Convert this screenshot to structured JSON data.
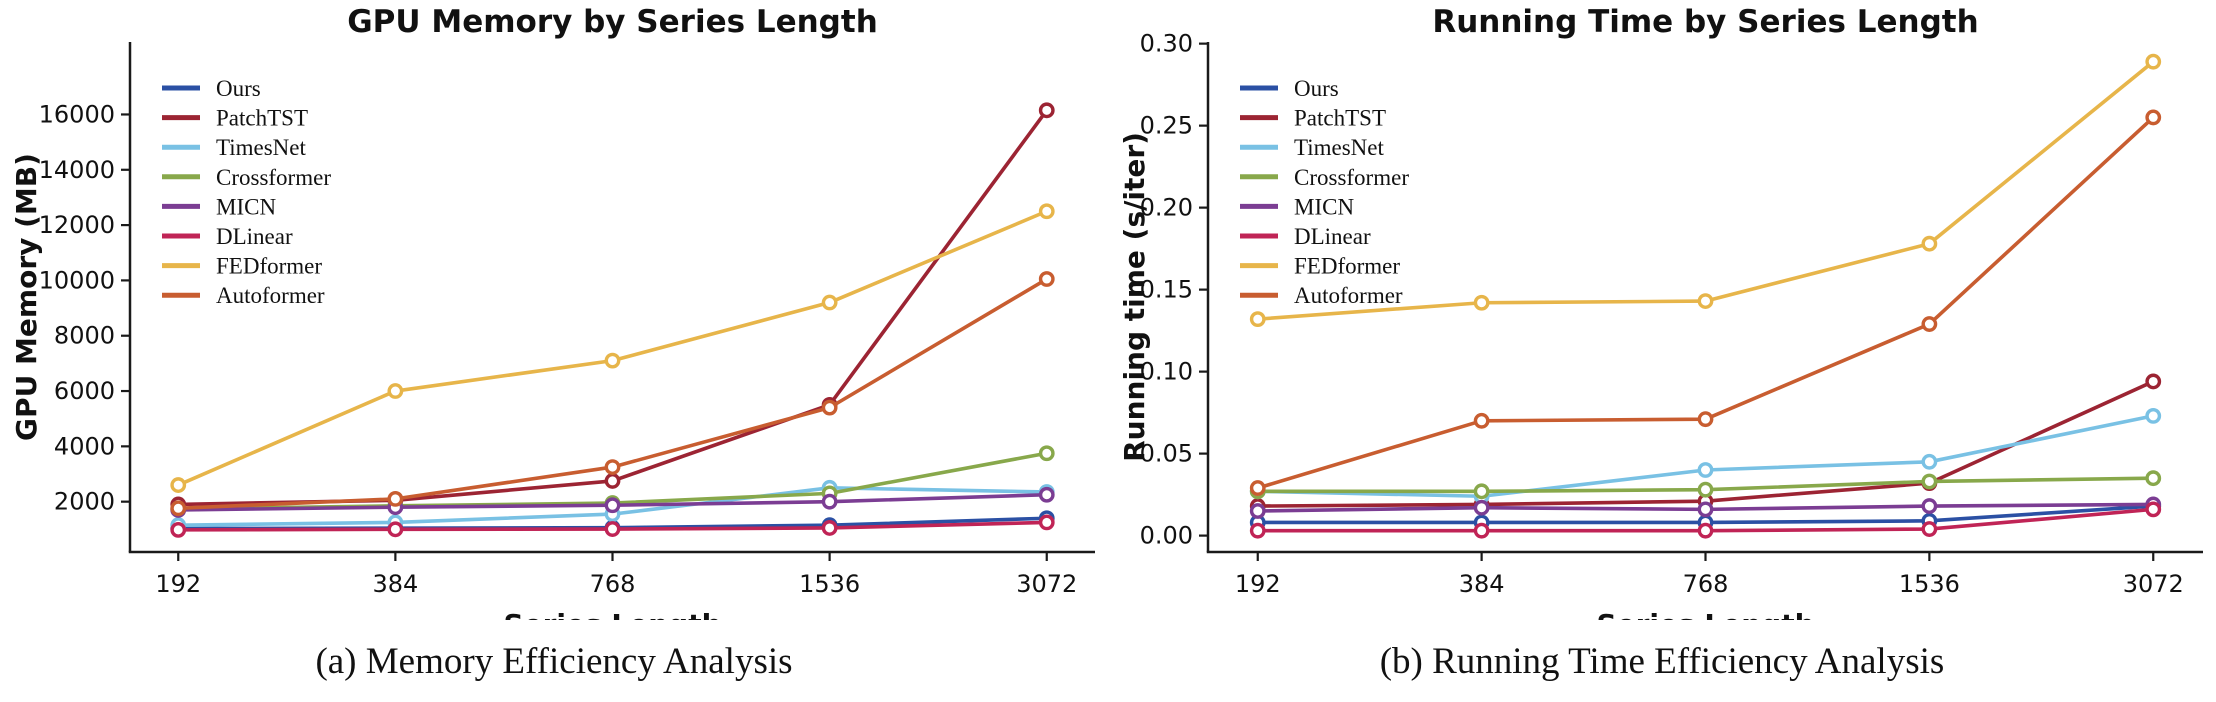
{
  "page": {
    "background": "#ffffff",
    "text_color": "#111111",
    "axis_color": "#1a1a1a"
  },
  "chart_data": [
    {
      "type": "line",
      "title": "GPU Memory by Series Length",
      "xlabel": "Series Length",
      "ylabel": "GPU Memory (MB)",
      "caption": "(a) Memory Efficiency Analysis",
      "categories": [
        "192",
        "384",
        "768",
        "1536",
        "3072"
      ],
      "ylim": [
        180,
        18620
      ],
      "yticks": [
        2000,
        4000,
        6000,
        8000,
        10000,
        12000,
        14000,
        16000
      ],
      "ytick_labels": [
        "2000",
        "4000",
        "6000",
        "8000",
        "10000",
        "12000",
        "14000",
        "16000"
      ],
      "grid": false,
      "legend_position": "upper-left",
      "series": [
        {
          "name": "Ours",
          "color": "#2b50a4",
          "values": [
            1030,
            1040,
            1060,
            1150,
            1400
          ]
        },
        {
          "name": "PatchTST",
          "color": "#9c2433",
          "values": [
            1900,
            2050,
            2750,
            5500,
            16150
          ]
        },
        {
          "name": "TimesNet",
          "color": "#79c1e4",
          "values": [
            1150,
            1250,
            1550,
            2500,
            2350
          ]
        },
        {
          "name": "Crossformer",
          "color": "#88a84b",
          "values": [
            1730,
            1850,
            1950,
            2300,
            3750
          ]
        },
        {
          "name": "MICN",
          "color": "#7b3d93",
          "values": [
            1700,
            1800,
            1870,
            2000,
            2250
          ]
        },
        {
          "name": "DLinear",
          "color": "#c02456",
          "values": [
            980,
            1000,
            1010,
            1050,
            1250
          ]
        },
        {
          "name": "FEDformer",
          "color": "#e7b54a",
          "values": [
            2600,
            6000,
            7100,
            9200,
            12500
          ]
        },
        {
          "name": "Autoformer",
          "color": "#c85d30",
          "values": [
            1760,
            2100,
            3250,
            5400,
            10050
          ]
        }
      ]
    },
    {
      "type": "line",
      "title": "Running Time by Series Length",
      "xlabel": "Series Length",
      "ylabel": "Running time (s/iter)",
      "caption": "(b) Running Time Efficiency Analysis",
      "categories": [
        "192",
        "384",
        "768",
        "1536",
        "3072"
      ],
      "ylim": [
        -0.01,
        0.301
      ],
      "yticks": [
        0.0,
        0.05,
        0.1,
        0.15,
        0.2,
        0.25,
        0.3
      ],
      "ytick_labels": [
        "0.00",
        "0.05",
        "0.10",
        "0.15",
        "0.20",
        "0.25",
        "0.30"
      ],
      "grid": false,
      "legend_position": "upper-left",
      "series": [
        {
          "name": "Ours",
          "color": "#2b50a4",
          "values": [
            0.008,
            0.008,
            0.008,
            0.009,
            0.018
          ]
        },
        {
          "name": "PatchTST",
          "color": "#9c2433",
          "values": [
            0.018,
            0.019,
            0.021,
            0.032,
            0.094
          ]
        },
        {
          "name": "TimesNet",
          "color": "#79c1e4",
          "values": [
            0.027,
            0.024,
            0.04,
            0.045,
            0.073
          ]
        },
        {
          "name": "Crossformer",
          "color": "#88a84b",
          "values": [
            0.027,
            0.027,
            0.028,
            0.033,
            0.035
          ]
        },
        {
          "name": "MICN",
          "color": "#7b3d93",
          "values": [
            0.015,
            0.017,
            0.016,
            0.018,
            0.019
          ]
        },
        {
          "name": "DLinear",
          "color": "#c02456",
          "values": [
            0.003,
            0.003,
            0.003,
            0.004,
            0.016
          ]
        },
        {
          "name": "FEDformer",
          "color": "#e7b54a",
          "values": [
            0.132,
            0.142,
            0.143,
            0.178,
            0.289
          ]
        },
        {
          "name": "Autoformer",
          "color": "#c85d30",
          "values": [
            0.029,
            0.07,
            0.071,
            0.129,
            0.255
          ]
        }
      ]
    }
  ]
}
